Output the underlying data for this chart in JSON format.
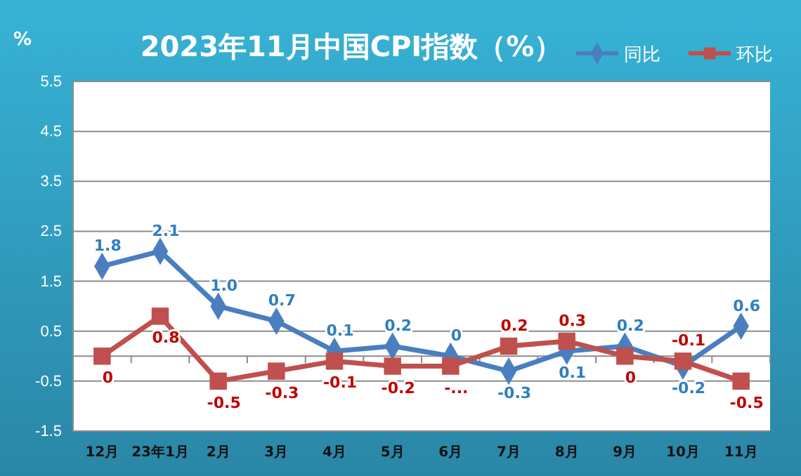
{
  "chart_data": {
    "type": "line",
    "title": "2023年11月中国CPI指数（%）",
    "ylabel": "%",
    "categories": [
      "12月",
      "23年1月",
      "2月",
      "3月",
      "4月",
      "5月",
      "6月",
      "7月",
      "8月",
      "9月",
      "10月",
      "11月"
    ],
    "ylim": [
      -1.5,
      5.5
    ],
    "yticks": [
      -1.5,
      -0.5,
      0.5,
      1.5,
      2.5,
      3.5,
      4.5,
      5.5
    ],
    "grid": "y",
    "legend": "top right",
    "series": [
      {
        "name": "同比",
        "color": "#4a7ebf",
        "marker": "diamond",
        "values": [
          1.8,
          2.1,
          1.0,
          0.7,
          0.1,
          0.2,
          0,
          -0.3,
          0.1,
          0.2,
          -0.2,
          0.6
        ],
        "value_labels": [
          "1.8",
          "2.1",
          "1.0",
          "0.7",
          "0.1",
          "0.2",
          "0",
          "-0.3",
          "0.1",
          "0.2",
          "-0.2",
          "0.6"
        ]
      },
      {
        "name": "环比",
        "color": "#c0504d",
        "marker": "square",
        "values": [
          0,
          0.8,
          -0.5,
          -0.3,
          -0.1,
          -0.2,
          -0.2,
          0.2,
          0.3,
          0,
          -0.1,
          -0.5
        ],
        "value_labels": [
          "0",
          "0.8",
          "-0.5",
          "-0.3",
          "-0.1",
          "-0.2",
          "-...",
          "0.2",
          "0.3",
          "0",
          "-0.1",
          "-0.5"
        ]
      }
    ]
  }
}
